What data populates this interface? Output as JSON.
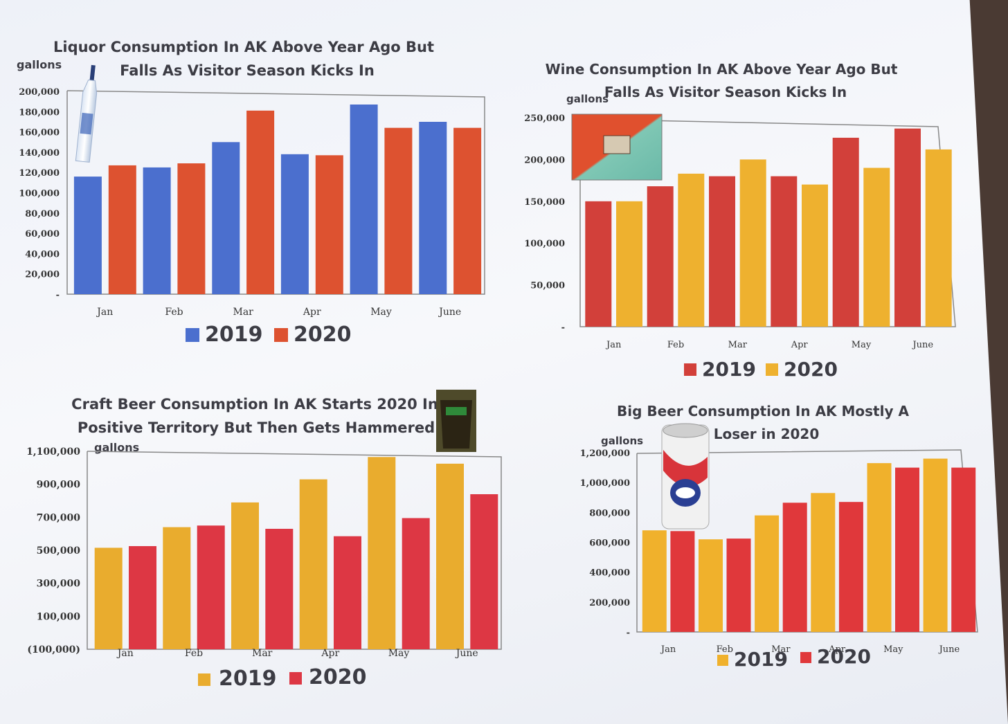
{
  "charts": [
    {
      "id": "liquor",
      "title_lines": [
        "Liquor Consumption In AK Above Year Ago But",
        "Falls As Visitor Season Kicks In"
      ],
      "unit": "gallons",
      "y_tick_labels": [
        "-",
        "20,000",
        "40,000",
        "60,000",
        "80,000",
        "100,000",
        "120,000",
        "140,000",
        "160,000",
        "180,000",
        "200,000"
      ],
      "colors": {
        "2019": "#4b6fce",
        "2020": "#dd5230"
      },
      "legend": [
        "2019",
        "2020"
      ],
      "icon": "vodka-bottle-icon"
    },
    {
      "id": "wine",
      "title_lines": [
        "Wine Consumption In AK Above Year Ago But",
        "Falls As Visitor Season Kicks In"
      ],
      "unit": "gallons",
      "y_tick_labels": [
        "-",
        "50,000",
        "100,000",
        "150,000",
        "200,000",
        "250,000"
      ],
      "colors": {
        "2019": "#d2403a",
        "2020": "#eeb12f"
      },
      "legend": [
        "2019",
        "2020"
      ],
      "icon": "wine-box-icon"
    },
    {
      "id": "craft",
      "title_lines": [
        "Craft Beer Consumption In AK Starts 2020 In",
        "Positive Territory But Then Gets Hammered"
      ],
      "unit": "gallons",
      "y_tick_labels": [
        "(100,000)",
        "100,000",
        "300,000",
        "500,000",
        "700,000",
        "900,000",
        "1,100,000"
      ],
      "colors": {
        "2019": "#e9ac2e",
        "2020": "#dd3744"
      },
      "legend": [
        "2019",
        "2020"
      ],
      "icon": "beer-glass-icon"
    },
    {
      "id": "bigbeer",
      "title_lines": [
        "Big Beer Consumption In AK Mostly A",
        "Loser in 2020"
      ],
      "unit": "gallons",
      "y_tick_labels": [
        "-",
        "200,000",
        "400,000",
        "600,000",
        "800,000",
        "1,000,000",
        "1,200,000"
      ],
      "colors": {
        "2019": "#f0b12c",
        "2020": "#e0383b"
      },
      "legend": [
        "2019",
        "2020"
      ],
      "icon": "beer-can-icon"
    }
  ],
  "chart_data": [
    {
      "type": "bar",
      "title": "Liquor Consumption In AK Above Year Ago But Falls As Visitor Season Kicks In",
      "ylabel": "gallons",
      "categories": [
        "Jan",
        "Feb",
        "Mar",
        "Apr",
        "May",
        "June"
      ],
      "ylim": [
        0,
        200000
      ],
      "grid": false,
      "legend_position": "bottom",
      "series": [
        {
          "name": "2019",
          "values": [
            116000,
            125000,
            150000,
            138000,
            187000,
            170000
          ]
        },
        {
          "name": "2020",
          "values": [
            127000,
            129000,
            181000,
            137000,
            164000,
            164000
          ]
        }
      ]
    },
    {
      "type": "bar",
      "title": "Wine Consumption In AK Above Year Ago But Falls As Visitor Season Kicks In",
      "ylabel": "gallons",
      "categories": [
        "Jan",
        "Feb",
        "Mar",
        "Apr",
        "May",
        "June"
      ],
      "ylim": [
        0,
        250000
      ],
      "grid": false,
      "legend_position": "bottom",
      "series": [
        {
          "name": "2019",
          "values": [
            150000,
            168000,
            180000,
            180000,
            226000,
            237000
          ]
        },
        {
          "name": "2020",
          "values": [
            150000,
            183000,
            200000,
            170000,
            190000,
            212000
          ]
        }
      ]
    },
    {
      "type": "bar",
      "title": "Craft Beer Consumption In AK Starts 2020 In Positive Territory But Then Gets Hammered",
      "ylabel": "gallons",
      "categories": [
        "Jan",
        "Feb",
        "Mar",
        "Apr",
        "May",
        "June"
      ],
      "ylim": [
        -100000,
        1100000
      ],
      "grid": false,
      "legend_position": "bottom",
      "series": [
        {
          "name": "2019",
          "values": [
            515000,
            640000,
            790000,
            930000,
            1065000,
            1025000
          ]
        },
        {
          "name": "2020",
          "values": [
            525000,
            650000,
            630000,
            585000,
            695000,
            840000
          ]
        }
      ]
    },
    {
      "type": "bar",
      "title": "Big Beer Consumption In AK Mostly A Loser in 2020",
      "ylabel": "gallons",
      "categories": [
        "Jan",
        "Feb",
        "Mar",
        "Apr",
        "May",
        "June"
      ],
      "ylim": [
        0,
        1200000
      ],
      "grid": false,
      "legend_position": "bottom",
      "series": [
        {
          "name": "2019",
          "values": [
            680000,
            620000,
            780000,
            930000,
            1130000,
            1160000
          ]
        },
        {
          "name": "2020",
          "values": [
            675000,
            625000,
            865000,
            870000,
            1100000,
            1100000
          ]
        }
      ]
    }
  ]
}
